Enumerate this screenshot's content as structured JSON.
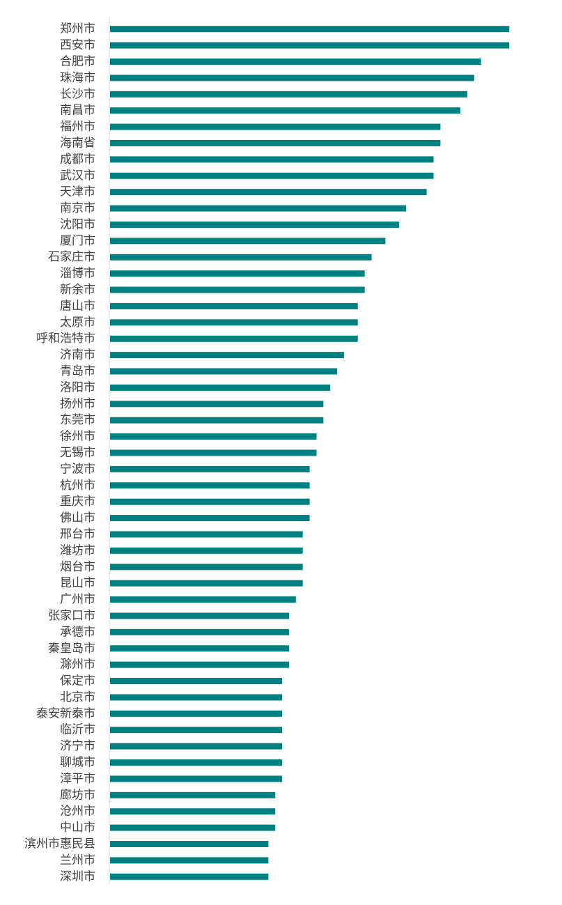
{
  "chart_data": {
    "type": "bar",
    "orientation": "horizontal",
    "categories": [
      "郑州市",
      "西安市",
      "合肥市",
      "珠海市",
      "长沙市",
      "南昌市",
      "福州市",
      "海南省",
      "成都市",
      "武汉市",
      "天津市",
      "南京市",
      "沈阳市",
      "厦门市",
      "石家庄市",
      "淄博市",
      "新余市",
      "唐山市",
      "太原市",
      "呼和浩特市",
      "济南市",
      "青岛市",
      "洛阳市",
      "扬州市",
      "东莞市",
      "徐州市",
      "无锡市",
      "宁波市",
      "杭州市",
      "重庆市",
      "佛山市",
      "邢台市",
      "潍坊市",
      "烟台市",
      "昆山市",
      "广州市",
      "张家口市",
      "承德市",
      "秦皇岛市",
      "滁州市",
      "保定市",
      "北京市",
      "泰安新泰市",
      "临沂市",
      "济宁市",
      "聊城市",
      "漳平市",
      "廊坊市",
      "沧州市",
      "中山市",
      "滨州市惠民县",
      "兰州市",
      "深圳市"
    ],
    "values": [
      58,
      58,
      53.9,
      52.9,
      51.9,
      50.9,
      48,
      48,
      47,
      47,
      46,
      43,
      42,
      40,
      38,
      37,
      37,
      36,
      36,
      36,
      34,
      33,
      32,
      31,
      31,
      30,
      30,
      29,
      29,
      29,
      29,
      28,
      28,
      28,
      28,
      27,
      26,
      26,
      26,
      26,
      25,
      25,
      25,
      25,
      25,
      25,
      25,
      24,
      24,
      24,
      23,
      23,
      23
    ],
    "xlim": [
      0,
      60
    ],
    "title": "",
    "xlabel": "",
    "ylabel": "",
    "grid": false,
    "legend": false,
    "color": "#008080",
    "axis_color": "#d9d9d9"
  }
}
